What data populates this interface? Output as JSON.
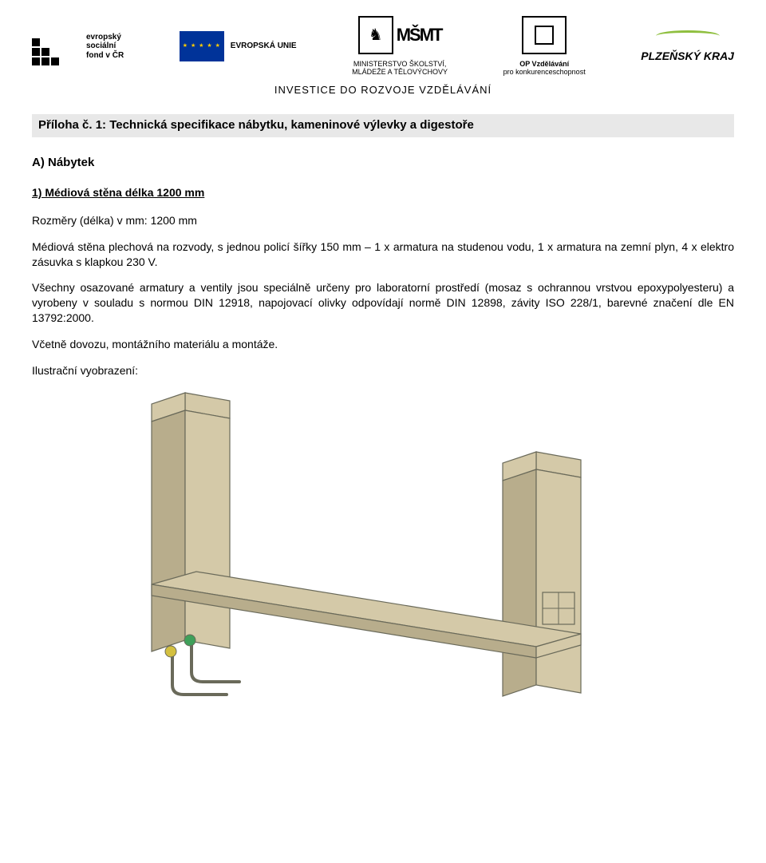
{
  "logos": {
    "esf": {
      "line1": "evropský",
      "line2": "sociální",
      "line3": "fond v ČR"
    },
    "eu": {
      "label": "EVROPSKÁ UNIE"
    },
    "msmt": {
      "letters": "MŠMT",
      "line1": "MINISTERSTVO ŠKOLSTVÍ,",
      "line2": "MLÁDEŽE A TĚLOVÝCHOVY"
    },
    "op": {
      "line1": "OP Vzdělávání",
      "line2": "pro konkurenceschopnost"
    },
    "kraj": {
      "label": "PLZEŇSKÝ KRAJ"
    }
  },
  "tagline": "INVESTICE DO ROZVOJE VZDĚLÁVÁNÍ",
  "title": "Příloha č. 1: Technická specifikace nábytku, kameninové výlevky a digestoře",
  "sectionA": "A)  Nábytek",
  "item1_heading": "1)  Médiová stěna délka 1200 mm",
  "para1": "Rozměry (délka) v mm: 1200 mm",
  "para2": "Médiová stěna plechová na rozvody, s jednou policí šířky 150 mm – 1 x armatura na studenou vodu, 1 x armatura na zemní plyn, 4 x elektro zásuvka s klapkou 230 V.",
  "para3": "Všechny osazované armatury a ventily jsou speciálně určeny pro laboratorní prostředí (mosaz s ochrannou vrstvou epoxypolyesteru) a vyrobeny v souladu s normou DIN 12918, napojovací olivky odpovídají normě DIN 12898, závity ISO 228/1, barevné značení dle EN 13792:2000.",
  "para4": "Včetně dovozu, montážního materiálu a montáže.",
  "illus_label": "Ilustrační vyobrazení:",
  "illustration": {
    "fill": "#d4c9a8",
    "fill_dark": "#b8ad8c",
    "stroke": "#6a6a5a",
    "valve_green": "#3fa05a",
    "valve_yellow": "#d4c040"
  }
}
